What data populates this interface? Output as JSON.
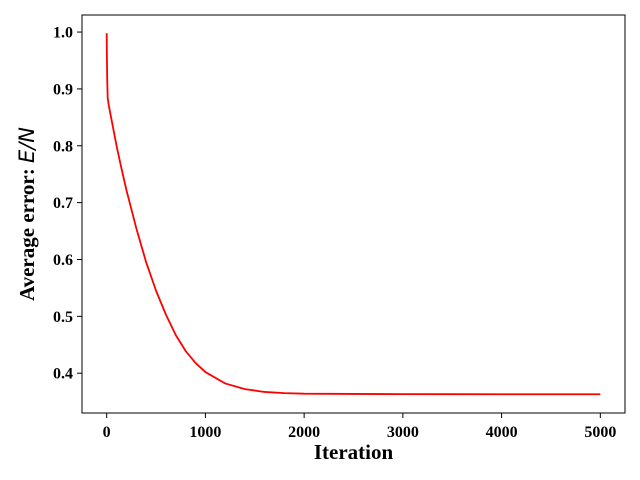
{
  "chart_data": {
    "type": "line",
    "xlabel": "Iteration",
    "ylabel_prefix": "Average error: ",
    "ylabel_math": "E/N",
    "xlim": [
      -250,
      5250
    ],
    "ylim": [
      0.33,
      1.03
    ],
    "xticks": [
      0,
      1000,
      2000,
      3000,
      4000,
      5000
    ],
    "yticks": [
      0.4,
      0.5,
      0.6,
      0.7,
      0.8,
      0.9,
      1.0
    ],
    "xtick_labels": [
      "0",
      "1000",
      "2000",
      "3000",
      "4000",
      "5000"
    ],
    "ytick_labels": [
      "0.4",
      "0.5",
      "0.6",
      "0.7",
      "0.8",
      "0.9",
      "1.0"
    ],
    "grid": false,
    "series": [
      {
        "color": "#ff0000",
        "x": [
          0,
          2,
          5,
          10,
          20,
          50,
          100,
          150,
          200,
          300,
          400,
          500,
          600,
          700,
          800,
          900,
          1000,
          1200,
          1400,
          1600,
          1800,
          2000,
          2500,
          3000,
          3500,
          4000,
          4500,
          5000
        ],
        "y": [
          0.998,
          0.96,
          0.92,
          0.885,
          0.872,
          0.845,
          0.8,
          0.76,
          0.722,
          0.655,
          0.595,
          0.545,
          0.503,
          0.467,
          0.439,
          0.418,
          0.402,
          0.382,
          0.372,
          0.367,
          0.365,
          0.364,
          0.3635,
          0.3632,
          0.3631,
          0.363,
          0.363,
          0.363
        ]
      }
    ]
  }
}
